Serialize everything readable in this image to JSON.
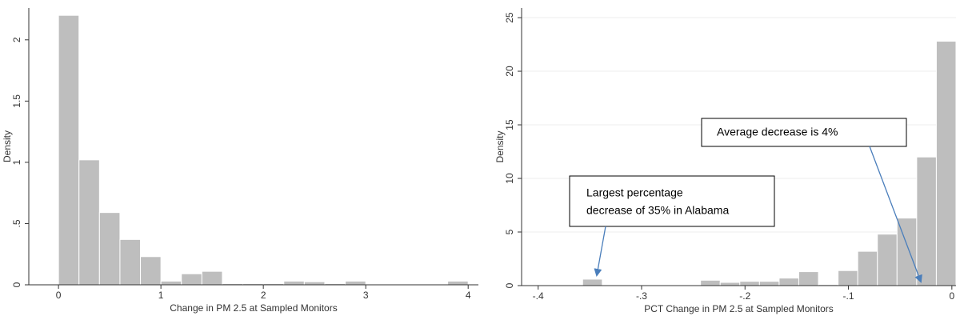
{
  "chart_data": [
    {
      "type": "histogram",
      "xlabel": "Change in PM 2.5 at Sampled Monitors",
      "ylabel": "Density",
      "bins": [
        0,
        0.2,
        0.4,
        0.6,
        0.8,
        1.0,
        1.2,
        1.4,
        1.6,
        1.8,
        2.0,
        2.2,
        2.4,
        2.6,
        2.8,
        3.0,
        3.2,
        3.4,
        3.6,
        3.8,
        4.0
      ],
      "values": [
        2.2,
        1.02,
        0.59,
        0.37,
        0.23,
        0.03,
        0.09,
        0.11,
        0.01,
        0.01,
        0.01,
        0.03,
        0.025,
        0.01,
        0.03,
        0,
        0,
        0,
        0,
        0.03
      ],
      "color": "#bebebe",
      "xlim": [
        -0.29,
        4.1
      ],
      "ylim": [
        0,
        2.26
      ],
      "xticks": [
        0,
        1,
        2,
        3,
        4
      ],
      "yticks": [
        0,
        {
          "value": 0.5,
          "label": ".5"
        },
        1,
        1.5,
        2
      ],
      "grid": false
    },
    {
      "type": "histogram",
      "xlabel": "PCT Change in PM 2.5 at Sampled Monitors",
      "ylabel": "Density",
      "bins": [
        -0.357,
        -0.338,
        -0.319,
        -0.3,
        -0.281,
        -0.262,
        -0.243,
        -0.224,
        -0.205,
        -0.186,
        -0.167,
        -0.148,
        -0.129,
        -0.11,
        -0.091,
        -0.072,
        -0.053,
        -0.034,
        -0.015,
        0.004
      ],
      "values": [
        0.6,
        0,
        0,
        0,
        0,
        0,
        0.5,
        0.3,
        0.4,
        0.4,
        0.7,
        1.3,
        0.1,
        1.4,
        3.2,
        4.8,
        6.3,
        12,
        22.8
      ],
      "color": "#bebebe",
      "xlim": [
        -0.416,
        0.004
      ],
      "ylim": [
        0,
        25.9
      ],
      "xticks": [
        {
          "value": -0.4,
          "label": "-.4"
        },
        {
          "value": -0.3,
          "label": "-.3"
        },
        {
          "value": -0.2,
          "label": "-.2"
        },
        {
          "value": -0.1,
          "label": "-.1"
        },
        0
      ],
      "yticks": [
        0,
        5,
        10,
        15,
        20,
        25
      ],
      "grid": true,
      "annotations": [
        {
          "lines": [
            "Largest percentage",
            "decrease of 35% in Alabama"
          ]
        },
        {
          "lines": [
            "Average decrease is 4%"
          ]
        }
      ]
    }
  ]
}
